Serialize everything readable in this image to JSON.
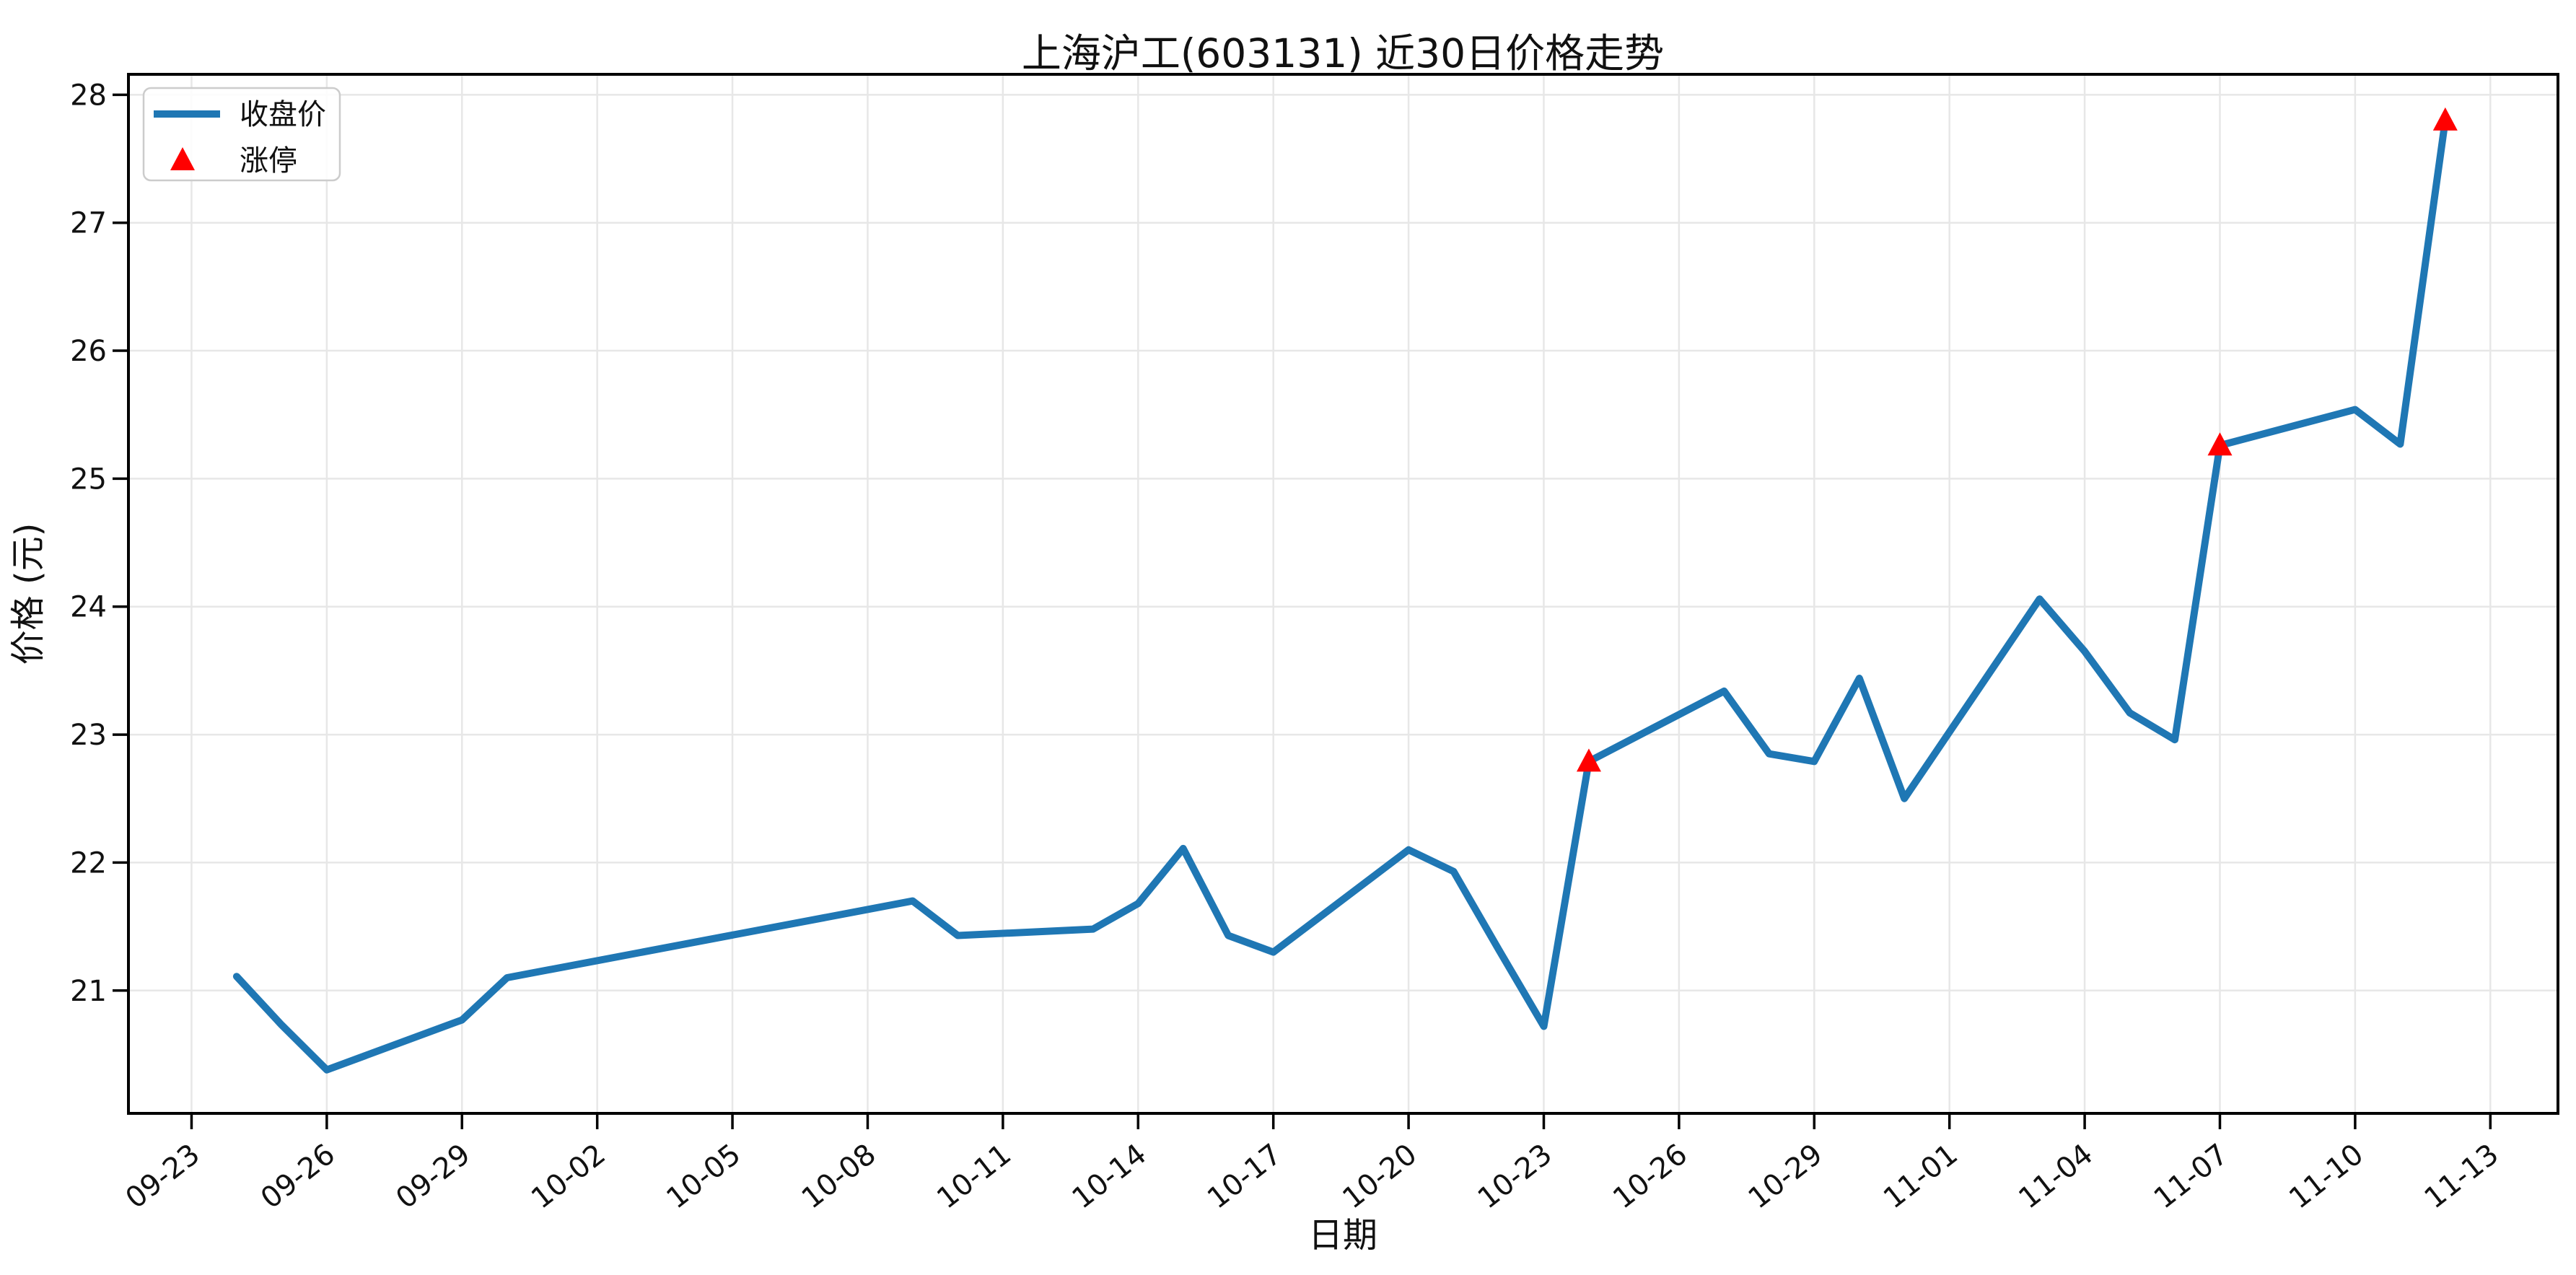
{
  "chart_data": {
    "type": "line",
    "title": "上海沪工(603131) 近30日价格走势",
    "xlabel": "日期",
    "ylabel": "价格 (元)",
    "grid": true,
    "legend_position": "upper left",
    "legend": [
      {
        "label": "收盘价",
        "marker": "line"
      },
      {
        "label": "涨停",
        "marker": "triangle-up"
      }
    ],
    "x_tick_labels": [
      "09-23",
      "09-26",
      "09-29",
      "10-02",
      "10-05",
      "10-08",
      "10-11",
      "10-14",
      "10-17",
      "10-20",
      "10-23",
      "10-26",
      "10-29",
      "11-01",
      "11-04",
      "11-07",
      "11-10",
      "11-13"
    ],
    "y_tick_labels": [
      "21",
      "22",
      "23",
      "24",
      "25",
      "26",
      "27",
      "28"
    ],
    "y_ticks": [
      21,
      22,
      23,
      24,
      25,
      26,
      27,
      28
    ],
    "ylim": [
      20.04,
      28.16
    ],
    "xlim_days": [
      -1.4,
      52.5
    ],
    "series": [
      {
        "name": "收盘价",
        "points": [
          {
            "date": "09-24",
            "price": 21.11
          },
          {
            "date": "09-25",
            "price": 20.73
          },
          {
            "date": "09-26",
            "price": 20.38
          },
          {
            "date": "09-29",
            "price": 20.77
          },
          {
            "date": "09-30",
            "price": 21.1
          },
          {
            "date": "10-09",
            "price": 21.7
          },
          {
            "date": "10-10",
            "price": 21.43
          },
          {
            "date": "10-13",
            "price": 21.48
          },
          {
            "date": "10-14",
            "price": 21.68
          },
          {
            "date": "10-15",
            "price": 22.11
          },
          {
            "date": "10-16",
            "price": 21.43
          },
          {
            "date": "10-17",
            "price": 21.3
          },
          {
            "date": "10-20",
            "price": 22.1
          },
          {
            "date": "10-21",
            "price": 21.93
          },
          {
            "date": "10-22",
            "price": 21.32
          },
          {
            "date": "10-23",
            "price": 20.72
          },
          {
            "date": "10-24",
            "price": 22.79,
            "limit_up": true
          },
          {
            "date": "10-27",
            "price": 23.34
          },
          {
            "date": "10-28",
            "price": 22.85
          },
          {
            "date": "10-29",
            "price": 22.79
          },
          {
            "date": "10-30",
            "price": 23.44
          },
          {
            "date": "10-31",
            "price": 22.5
          },
          {
            "date": "11-03",
            "price": 24.06
          },
          {
            "date": "11-04",
            "price": 23.65
          },
          {
            "date": "11-05",
            "price": 23.17
          },
          {
            "date": "11-06",
            "price": 22.96
          },
          {
            "date": "11-07",
            "price": 25.26,
            "limit_up": true
          },
          {
            "date": "11-10",
            "price": 25.54
          },
          {
            "date": "11-11",
            "price": 25.27
          },
          {
            "date": "11-12",
            "price": 27.8,
            "limit_up": true
          }
        ]
      }
    ],
    "limit_up_dates": [
      "10-24",
      "11-07",
      "11-12"
    ],
    "colors": {
      "line": "#1f77b4",
      "limit_up": "#ff0000",
      "grid": "#e7e7e7",
      "spine": "#000000",
      "text": "#111111",
      "background": "#ffffff",
      "legend_border": "#cccccc",
      "legend_background": "rgba(255,255,255,0.85)"
    }
  }
}
